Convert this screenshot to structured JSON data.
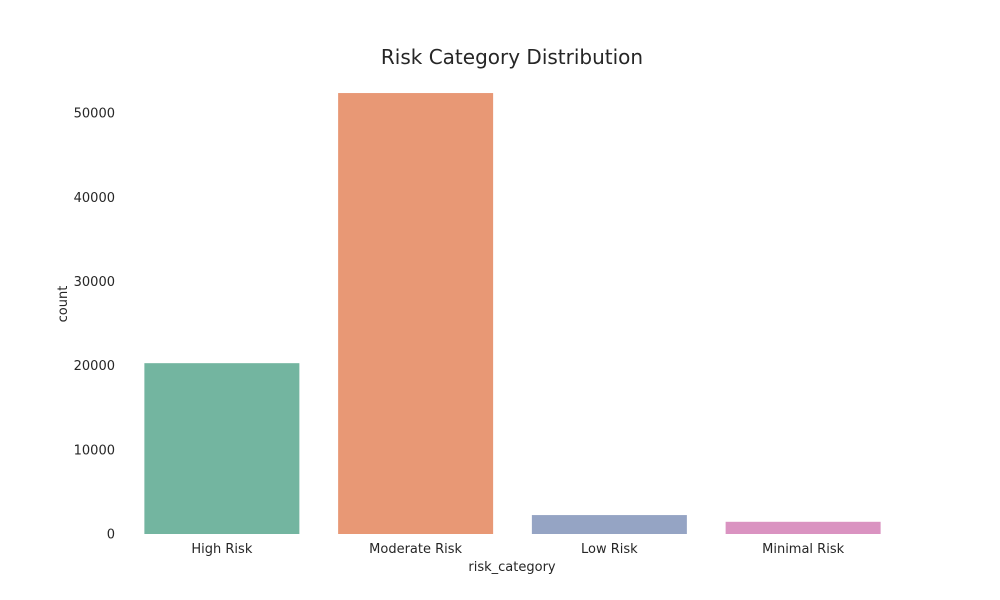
{
  "chart_data": {
    "type": "bar",
    "title": "Risk Category Distribution",
    "xlabel": "risk_category",
    "ylabel": "count",
    "categories": [
      "High Risk",
      "Moderate Risk",
      "Low Risk",
      "Minimal Risk"
    ],
    "values": [
      20300,
      52400,
      2250,
      1450
    ],
    "colors": [
      "#73b5a0",
      "#e89875",
      "#95a4c4",
      "#da93c1"
    ],
    "ylim": [
      0,
      53000
    ],
    "yticks": [
      0,
      10000,
      20000,
      30000,
      40000,
      50000
    ],
    "ytick_labels": [
      "0",
      "10000",
      "20000",
      "30000",
      "40000",
      "50000"
    ],
    "grid": false,
    "legend": "none"
  }
}
